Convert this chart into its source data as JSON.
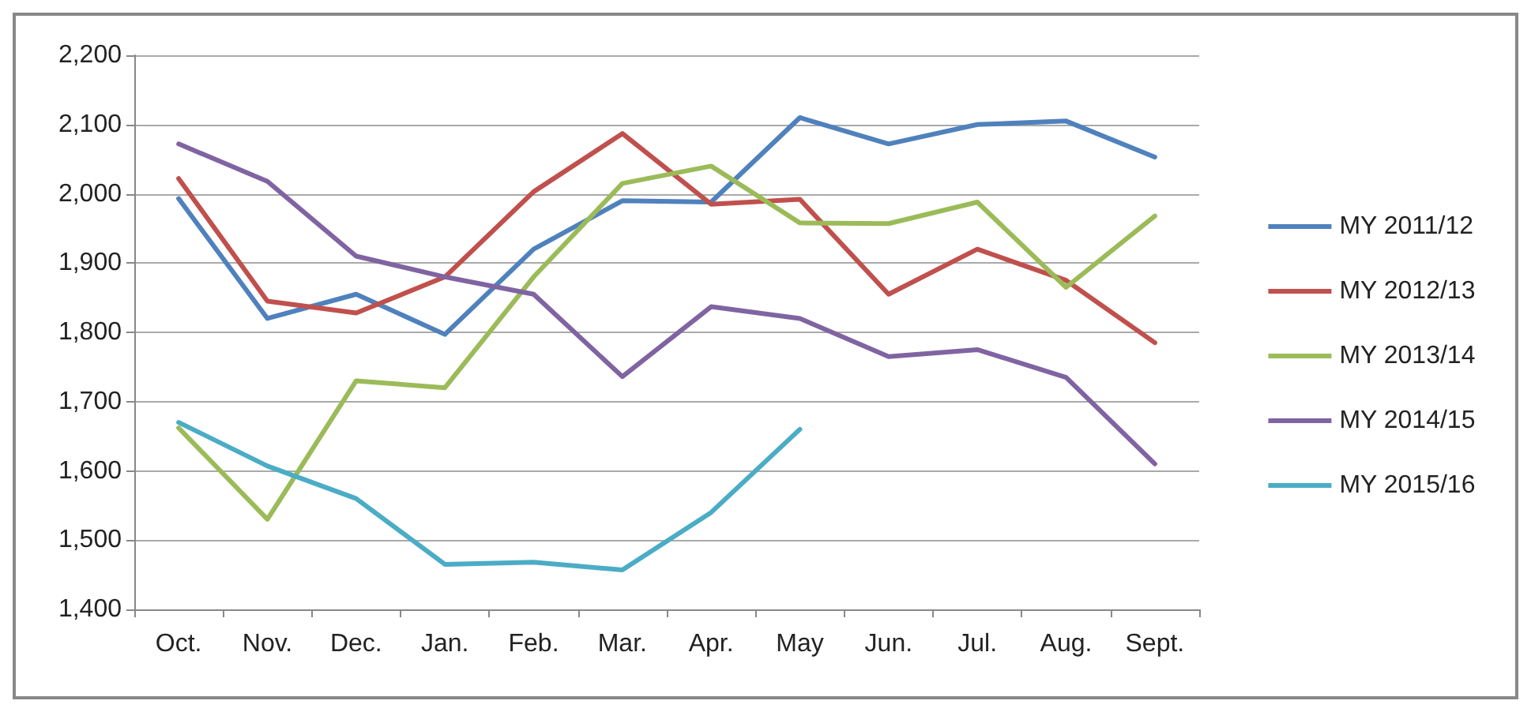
{
  "chart_data": {
    "type": "line",
    "categories": [
      "Oct.",
      "Nov.",
      "Dec.",
      "Jan.",
      "Feb.",
      "Mar.",
      "Apr.",
      "May",
      "Jun.",
      "Jul.",
      "Aug.",
      "Sept."
    ],
    "series": [
      {
        "name": "MY 2011/12",
        "color": "#4f81bd",
        "values": [
          1993,
          1820,
          1855,
          1797,
          1920,
          1990,
          1988,
          2110,
          2072,
          2100,
          2105,
          2053
        ]
      },
      {
        "name": "MY 2012/13",
        "color": "#c0504d",
        "values": [
          2022,
          1845,
          1828,
          1880,
          2003,
          2087,
          1985,
          1992,
          1855,
          1920,
          1875,
          1785
        ]
      },
      {
        "name": "MY 2013/14",
        "color": "#9bbb59",
        "values": [
          1662,
          1530,
          1730,
          1720,
          1880,
          2015,
          2040,
          1958,
          1957,
          1988,
          1865,
          1968
        ]
      },
      {
        "name": "MY 2014/15",
        "color": "#8064a2",
        "values": [
          2072,
          2018,
          1910,
          1880,
          1855,
          1736,
          1837,
          1820,
          1765,
          1775,
          1735,
          1610
        ]
      },
      {
        "name": "MY 2015/16",
        "color": "#4bacc6",
        "values": [
          1670,
          1607,
          1560,
          1465,
          1468,
          1457,
          1540,
          1660,
          null,
          null,
          null,
          null
        ]
      }
    ],
    "ylim": [
      1400,
      2200
    ],
    "yticks": [
      {
        "value": 1400,
        "label": "1,400"
      },
      {
        "value": 1500,
        "label": "1,500"
      },
      {
        "value": 1600,
        "label": "1,600"
      },
      {
        "value": 1700,
        "label": "1,700"
      },
      {
        "value": 1800,
        "label": "1,800"
      },
      {
        "value": 1900,
        "label": "1,900"
      },
      {
        "value": 2000,
        "label": "2,000"
      },
      {
        "value": 2100,
        "label": "2,100"
      },
      {
        "value": 2200,
        "label": "2,200"
      }
    ],
    "grid": "y",
    "legend": "right",
    "marker": "none",
    "line_style": "solid"
  }
}
